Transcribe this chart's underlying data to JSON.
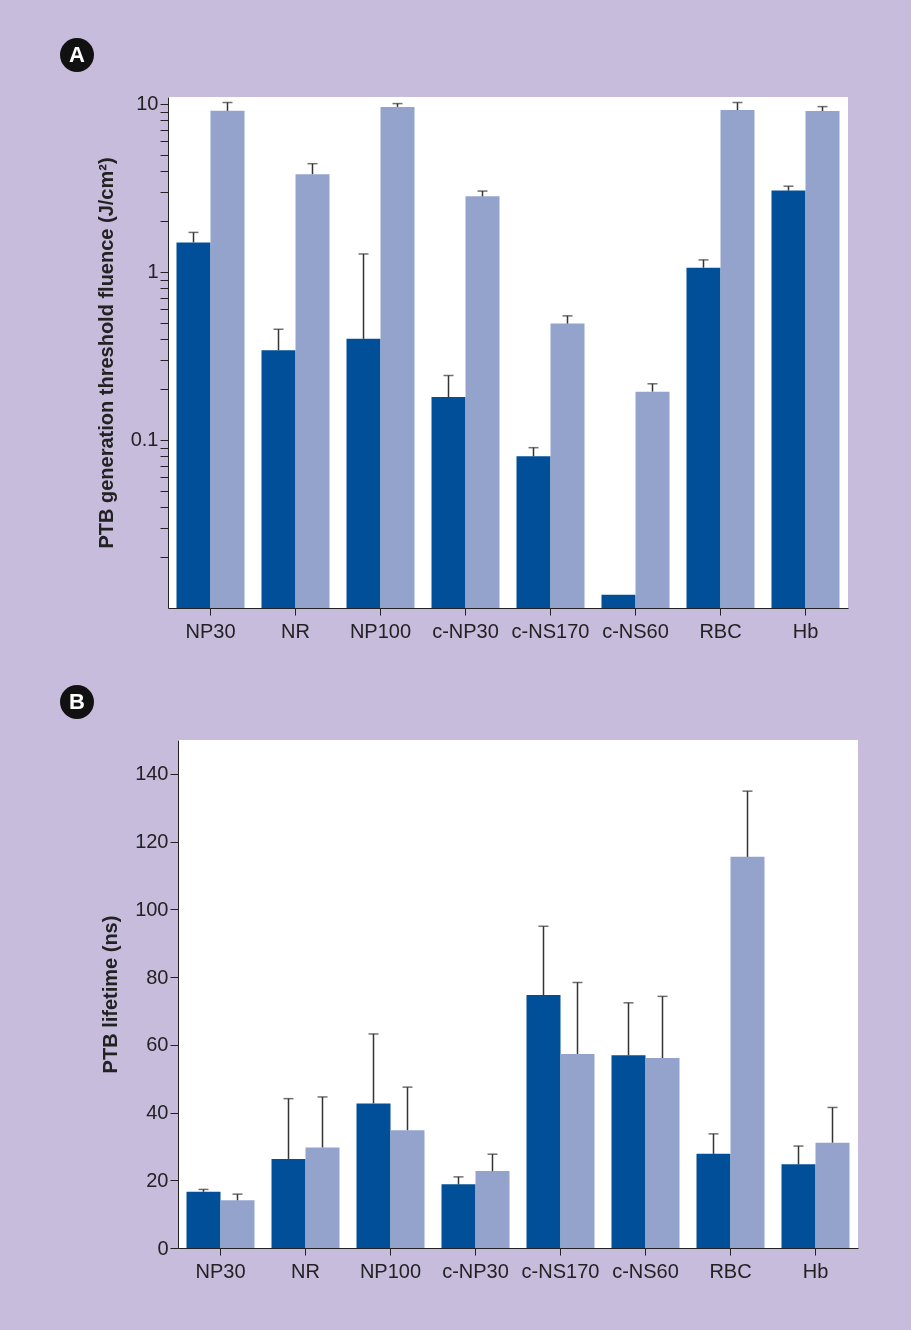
{
  "chart_data": [
    {
      "type": "bar",
      "title": "A",
      "ylabel": "PTB generation threshold fluence (J/cm²)",
      "log": true,
      "categories": [
        "NP30",
        "NR",
        "NP100",
        "c-NP30",
        "c-NS170",
        "c-NS60",
        "RBC",
        "Hb"
      ],
      "series": [
        {
          "color": "#004f98",
          "values": [
            1.5,
            0.342,
            0.4,
            0.18,
            0.08,
            0.012,
            1.06,
            3.05
          ],
          "errors": [
            [
              1.5,
              1.72
            ],
            [
              0.342,
              0.456
            ],
            [
              0.4,
              1.28
            ],
            [
              0.18,
              0.242
            ],
            [
              0.08,
              0.09
            ],
            null,
            [
              1.06,
              1.18
            ],
            [
              3.05,
              3.24
            ]
          ]
        },
        {
          "color": "#93a3cc",
          "values": [
            9.1,
            3.82,
            9.6,
            2.82,
            0.493,
            0.194,
            9.2,
            9.08
          ],
          "errors": [
            [
              9.1,
              10.2
            ],
            [
              3.82,
              4.41
            ],
            [
              9.6,
              10.05
            ],
            [
              2.82,
              3.03
            ],
            [
              0.493,
              0.548
            ],
            [
              0.194,
              0.216
            ],
            [
              9.2,
              10.2
            ],
            [
              9.08,
              9.64
            ]
          ]
        }
      ],
      "ylim": [
        0.01,
        11
      ],
      "yticks": [
        {
          "value": 0.02,
          "label": null
        },
        {
          "value": 0.03,
          "label": null
        },
        {
          "value": 0.04,
          "label": null
        },
        {
          "value": 0.05,
          "label": null
        },
        {
          "value": 0.06,
          "label": null
        },
        {
          "value": 0.07,
          "label": null
        },
        {
          "value": 0.08,
          "label": null
        },
        {
          "value": 0.09,
          "label": null
        },
        0.1,
        {
          "value": 0.2,
          "label": null
        },
        {
          "value": 0.3,
          "label": null
        },
        {
          "value": 0.4,
          "label": null
        },
        {
          "value": 0.5,
          "label": null
        },
        {
          "value": 0.6,
          "label": null
        },
        {
          "value": 0.7,
          "label": null
        },
        {
          "value": 0.8,
          "label": null
        },
        {
          "value": 0.9,
          "label": null
        },
        1,
        {
          "value": 2,
          "label": null
        },
        {
          "value": 3,
          "label": null
        },
        {
          "value": 4,
          "label": null
        },
        {
          "value": 5,
          "label": null
        },
        {
          "value": 6,
          "label": null
        },
        {
          "value": 7,
          "label": null
        },
        {
          "value": 8,
          "label": null
        },
        {
          "value": 9,
          "label": null
        },
        10
      ]
    },
    {
      "type": "bar",
      "title": "B",
      "ylabel": "PTB lifetime (ns)",
      "categories": [
        "NP30",
        "NR",
        "NP100",
        "c-NP30",
        "c-NS170",
        "c-NS60",
        "RBC",
        "Hb"
      ],
      "series": [
        {
          "color": "#004f98",
          "values": [
            16.6,
            26.3,
            42.7,
            18.8,
            74.7,
            56.9,
            27.8,
            24.7
          ],
          "errors": [
            [
              16.6,
              17.3
            ],
            [
              26.3,
              44.1
            ],
            [
              42.7,
              63.2
            ],
            [
              18.8,
              21.0
            ],
            [
              74.7,
              95.0
            ],
            [
              56.9,
              72.4
            ],
            [
              27.8,
              33.7
            ],
            [
              24.7,
              30.1
            ]
          ]
        },
        {
          "color": "#93a3cc",
          "values": [
            14.1,
            29.7,
            34.8,
            22.7,
            57.3,
            56.1,
            115.5,
            31.1
          ],
          "errors": [
            [
              14.1,
              15.9
            ],
            [
              29.7,
              44.6
            ],
            [
              34.8,
              47.5
            ],
            [
              22.7,
              27.7
            ],
            [
              57.3,
              78.4
            ],
            [
              56.1,
              74.3
            ],
            [
              115.5,
              134.9
            ],
            [
              31.1,
              41.5
            ]
          ]
        }
      ],
      "ylim": [
        0,
        150
      ],
      "yticks": [
        0,
        20,
        40,
        60,
        80,
        100,
        120,
        140
      ]
    }
  ]
}
